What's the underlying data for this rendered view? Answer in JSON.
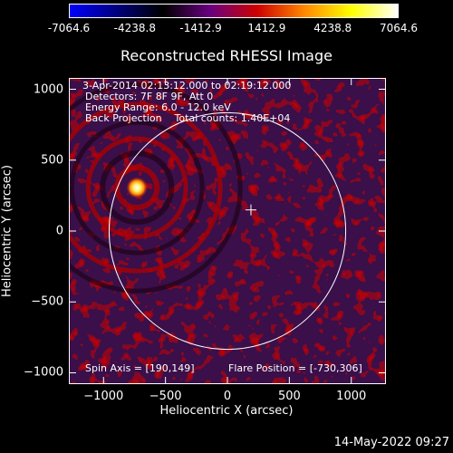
{
  "colorbar": {
    "ticks": [
      "-7064.6",
      "-4238.8",
      "-1412.9",
      "1412.9",
      "4238.8",
      "7064.6"
    ],
    "range": [
      -7064.6,
      7064.6
    ],
    "colormap": [
      "#0000ff",
      "#000080",
      "#000000",
      "#6a0080",
      "#cc0000",
      "#ff8800",
      "#ffff00",
      "#ffffff"
    ]
  },
  "chart_data": {
    "type": "heatmap",
    "title": "Reconstructed RHESSI Image",
    "xlabel": "Heliocentric X (arcsec)",
    "ylabel": "Heliocentric Y (arcsec)",
    "xlim": [
      -1280,
      1280
    ],
    "ylim": [
      -1080,
      1080
    ],
    "xticks": [
      -1000,
      -500,
      0,
      500,
      1000
    ],
    "xtick_labels": [
      "−1000",
      "−500",
      "0",
      "500",
      "1000"
    ],
    "yticks": [
      -1000,
      -500,
      0,
      500,
      1000
    ],
    "ytick_labels": [
      "−1000",
      "−500",
      "0",
      "500",
      "1000"
    ],
    "solar_limb_radius_arcsec": 955,
    "map_center_arcsec": [
      190,
      149
    ],
    "flare_source_arcsec": [
      -730,
      306
    ],
    "annotations": [
      "3-Apr-2014 02:13:12.000 to 02:19:12.000",
      "Detectors: 7F 8F 9F, Att 0",
      "Energy Range: 6.0 - 12.0 keV",
      "Back Projection    Total counts: 1.40E+04",
      "Spin Axis = [190,149]",
      "Flare Position = [-730,306]"
    ]
  },
  "timestamp": "14-May-2022 09:27"
}
